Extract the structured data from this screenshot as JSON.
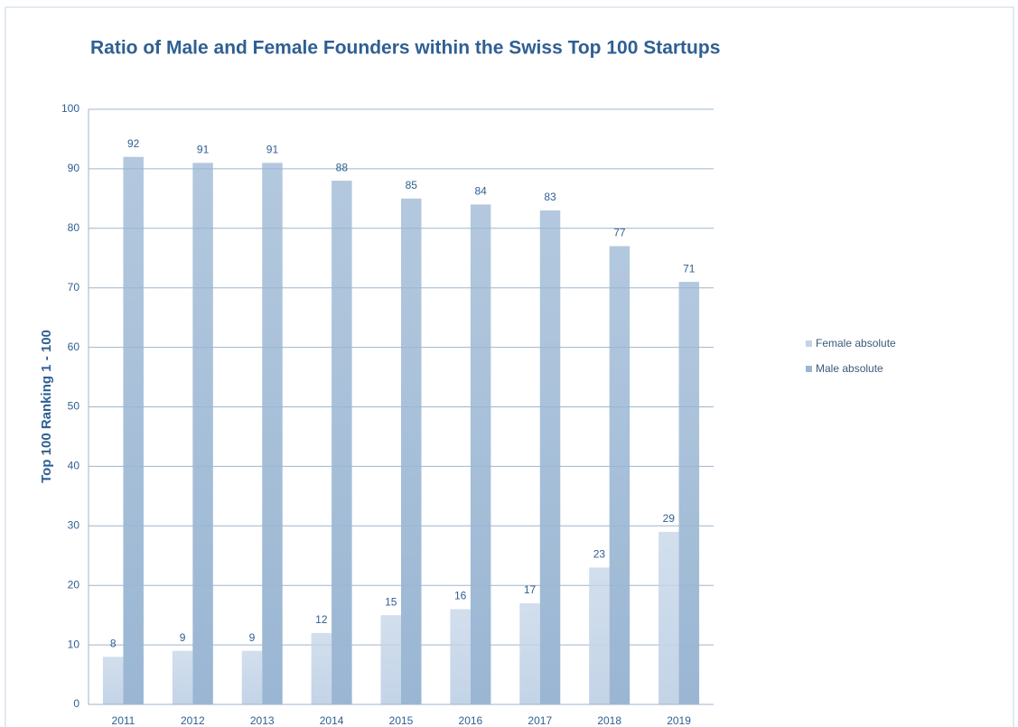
{
  "chart_data": {
    "type": "bar",
    "title": "Ratio of Male and Female Founders within the Swiss Top 100 Startups",
    "y_label": "Top 100 Ranking 1 - 100",
    "categories": [
      "2011",
      "2012",
      "2013",
      "2014",
      "2015",
      "2016",
      "2017",
      "2018",
      "2019"
    ],
    "series": [
      {
        "name": "Female absolute",
        "color": "#c3d4e7",
        "values": [
          8,
          9,
          9,
          12,
          15,
          16,
          17,
          23,
          29
        ]
      },
      {
        "name": "Male absolute",
        "color": "#9ab6d3",
        "values": [
          92,
          91,
          91,
          88,
          85,
          84,
          83,
          77,
          71
        ]
      }
    ],
    "ylim": [
      0,
      100
    ],
    "yticks": [
      0,
      10,
      20,
      30,
      40,
      50,
      60,
      70,
      80,
      90,
      100
    ],
    "grid": true,
    "legend": "right"
  }
}
